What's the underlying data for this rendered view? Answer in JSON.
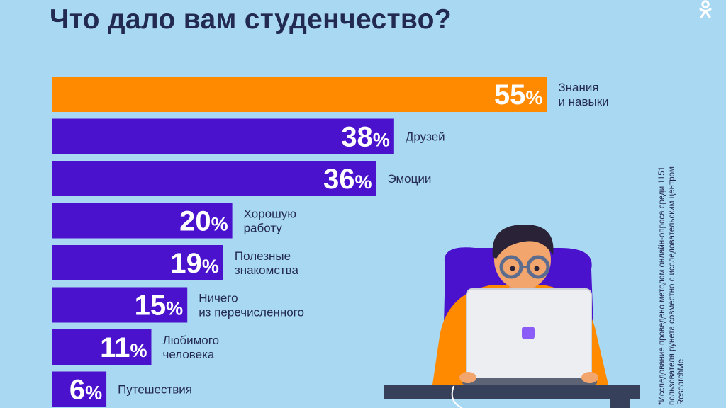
{
  "title": "Что дало вам студенчество?",
  "footnote": "*Исследование проведено методом онлайн-опроса среди 1151 пользователя рунета совместно с исследовательским центром ResearchMe",
  "colors": {
    "background": "#a9d8f3",
    "highlight": "#ff8a00",
    "bar": "#4a12cc",
    "text": "#232a52"
  },
  "icons": {
    "logo": "ok-logo-icon"
  },
  "chart_data": {
    "type": "bar",
    "orientation": "horizontal",
    "title": "Что дало вам студенчество?",
    "unit": "%",
    "categories": [
      [
        "Знания",
        "и навыки"
      ],
      [
        "Друзей"
      ],
      [
        "Эмоции"
      ],
      [
        "Хорошую",
        "работу"
      ],
      [
        "Полезные",
        "знакомства"
      ],
      [
        "Ничего",
        "из перечисленного"
      ],
      [
        "Любимого",
        "человека"
      ],
      [
        "Путешествия"
      ]
    ],
    "values": [
      55,
      38,
      36,
      20,
      19,
      15,
      11,
      6
    ],
    "highlight_index": 0
  }
}
